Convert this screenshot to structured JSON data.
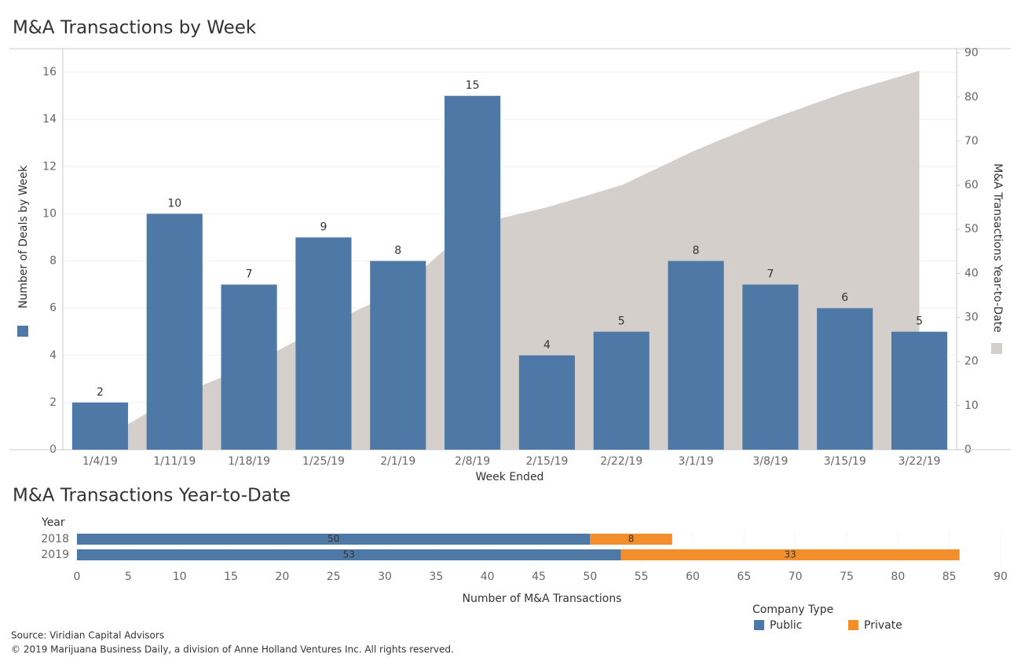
{
  "chart_data": [
    {
      "type": "bar",
      "title": "M&A Transactions by Week",
      "categories": [
        "1/4/19",
        "1/11/19",
        "1/18/19",
        "1/25/19",
        "2/1/19",
        "2/8/19",
        "2/15/19",
        "2/22/19",
        "3/1/19",
        "3/8/19",
        "3/15/19",
        "3/22/19"
      ],
      "xlabel": "Week Ended",
      "ylabel": "Number of Deals by Week",
      "y2label": "M&A Transactions Year-to-Date",
      "series": [
        {
          "color": "#4e79a7",
          "values": [
            2,
            10,
            7,
            9,
            8,
            15,
            4,
            5,
            8,
            7,
            6,
            5
          ]
        },
        {
          "type": "area",
          "axis": "y2",
          "color": "#d5cfcc",
          "values": [
            2,
            12,
            19,
            28,
            36,
            51,
            55,
            60,
            68,
            75,
            81,
            86
          ]
        }
      ],
      "ylim": [
        0,
        17
      ],
      "yticks": [
        0,
        2,
        4,
        6,
        8,
        10,
        12,
        14,
        16
      ],
      "y2lim": [
        0,
        91
      ],
      "y2ticks": [
        0,
        10,
        20,
        30,
        40,
        50,
        60,
        70,
        80,
        90
      ],
      "grid": true
    },
    {
      "type": "bar",
      "orientation": "horizontal",
      "stacked": true,
      "title": "M&A Transactions Year-to-Date",
      "category_label": "Year",
      "categories": [
        "2018",
        "2019"
      ],
      "xlabel": "Number of M&A Transactions",
      "legend_title": "Company Type",
      "series": [
        {
          "name": "Public",
          "color": "#4e79a7",
          "values": [
            50,
            53
          ]
        },
        {
          "name": "Private",
          "color": "#f28e2b",
          "values": [
            8,
            33
          ]
        }
      ],
      "xlim": [
        0,
        90
      ],
      "xticks": [
        0,
        5,
        10,
        15,
        20,
        25,
        30,
        35,
        40,
        45,
        50,
        55,
        60,
        65,
        70,
        75,
        80,
        85,
        90
      ]
    }
  ],
  "footer": [
    "Source: Viridian Capital Advisors",
    "© 2019 Marijuana Business Daily, a division of Anne Holland Ventures Inc. All rights reserved."
  ]
}
